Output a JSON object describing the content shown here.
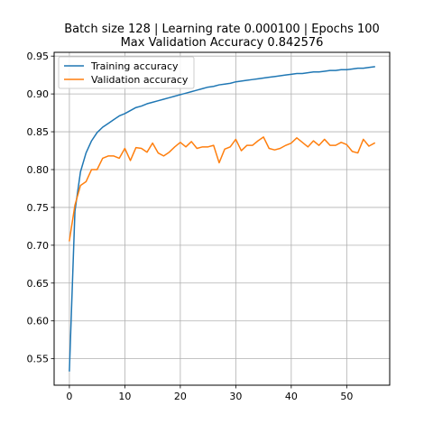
{
  "chart_data": {
    "type": "line",
    "title_line1": "Batch size 128 | Learning rate 0.000100 | Epochs 100",
    "title_line2": "Max Validation Accuracy 0.842576",
    "xlim": [
      -2.75,
      57.75
    ],
    "ylim": [
      0.515,
      0.955
    ],
    "x_ticks": [
      0,
      10,
      20,
      30,
      40,
      50
    ],
    "y_ticks": [
      0.55,
      0.6,
      0.65,
      0.7,
      0.75,
      0.8,
      0.85,
      0.9,
      0.95
    ],
    "grid": true,
    "legend_position": "top-left",
    "x": [
      0,
      1,
      2,
      3,
      4,
      5,
      6,
      7,
      8,
      9,
      10,
      11,
      12,
      13,
      14,
      15,
      16,
      17,
      18,
      19,
      20,
      21,
      22,
      23,
      24,
      25,
      26,
      27,
      28,
      29,
      30,
      31,
      32,
      33,
      34,
      35,
      36,
      37,
      38,
      39,
      40,
      41,
      42,
      43,
      44,
      45,
      46,
      47,
      48,
      49,
      50,
      51,
      52,
      53,
      54,
      55
    ],
    "series": [
      {
        "name": "Training accuracy",
        "color": "#1f77b4",
        "values": [
          0.534,
          0.745,
          0.797,
          0.822,
          0.838,
          0.849,
          0.856,
          0.861,
          0.866,
          0.871,
          0.874,
          0.878,
          0.882,
          0.884,
          0.887,
          0.889,
          0.891,
          0.893,
          0.895,
          0.897,
          0.899,
          0.901,
          0.903,
          0.905,
          0.907,
          0.909,
          0.91,
          0.912,
          0.913,
          0.914,
          0.916,
          0.917,
          0.918,
          0.919,
          0.92,
          0.921,
          0.922,
          0.923,
          0.924,
          0.925,
          0.926,
          0.927,
          0.927,
          0.928,
          0.929,
          0.929,
          0.93,
          0.931,
          0.931,
          0.932,
          0.932,
          0.933,
          0.934,
          0.934,
          0.935,
          0.936
        ]
      },
      {
        "name": "Validation accuracy",
        "color": "#ff7f0e",
        "values": [
          0.706,
          0.753,
          0.779,
          0.784,
          0.8,
          0.8,
          0.815,
          0.818,
          0.818,
          0.815,
          0.828,
          0.812,
          0.829,
          0.828,
          0.823,
          0.835,
          0.822,
          0.818,
          0.823,
          0.83,
          0.836,
          0.83,
          0.837,
          0.828,
          0.83,
          0.83,
          0.832,
          0.809,
          0.827,
          0.83,
          0.84,
          0.825,
          0.832,
          0.832,
          0.838,
          0.843,
          0.828,
          0.826,
          0.828,
          0.832,
          0.835,
          0.842,
          0.836,
          0.83,
          0.838,
          0.832,
          0.84,
          0.832,
          0.832,
          0.836,
          0.833,
          0.824,
          0.822,
          0.84,
          0.831,
          0.835
        ]
      }
    ]
  }
}
